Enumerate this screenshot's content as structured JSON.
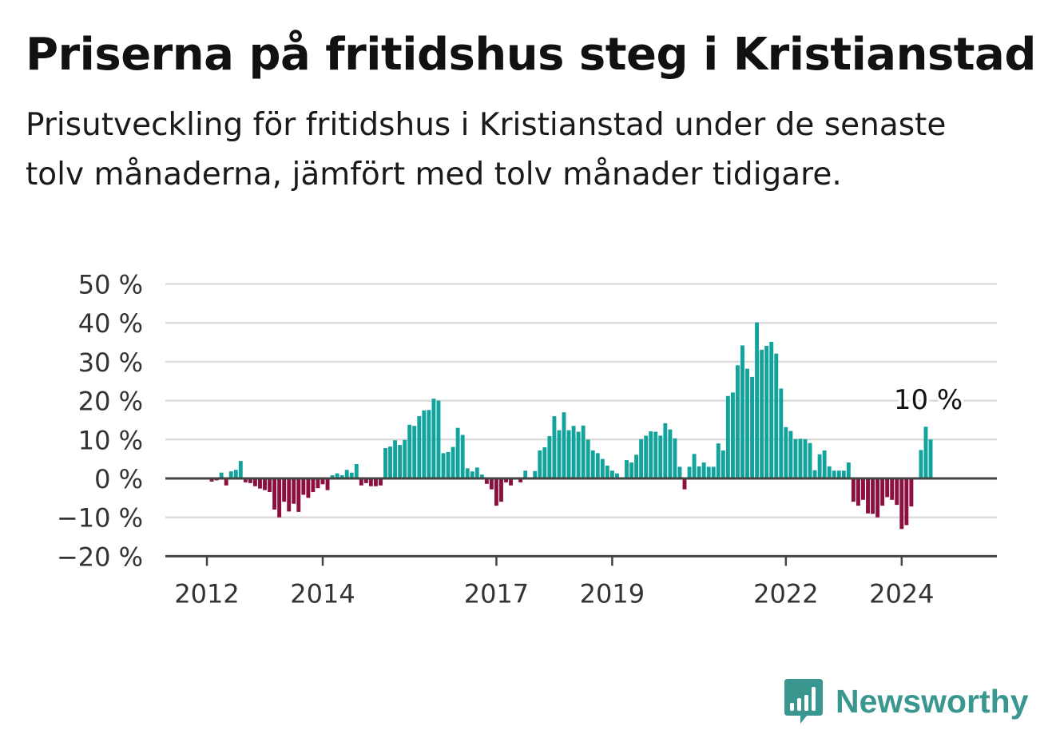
{
  "title": "Priserna på fritidshus steg i Kristianstad",
  "subtitle": "Prisutveckling för fritidshus i Kristianstad under de senaste tolv månaderna, jämfört med tolv månader tidigare.",
  "brand": {
    "name": "Newsworthy",
    "icon": "newsworthy-logo-icon"
  },
  "colors": {
    "positive": "#11a39c",
    "negative": "#8c0f40",
    "grid": "#dcdcdc",
    "axis": "#444444",
    "brand": "#3a9790"
  },
  "chart_data": {
    "type": "bar",
    "title": "",
    "xlabel": "",
    "ylabel": "",
    "ylim": [
      -20,
      50
    ],
    "y_ticks": [
      {
        "value": -20,
        "label": "−20 %"
      },
      {
        "value": -10,
        "label": "−10 %"
      },
      {
        "value": 0,
        "label": "0 %"
      },
      {
        "value": 10,
        "label": "10 %"
      },
      {
        "value": 20,
        "label": "20 %"
      },
      {
        "value": 30,
        "label": "30 %"
      },
      {
        "value": 40,
        "label": "40 %"
      },
      {
        "value": 50,
        "label": "50 %"
      }
    ],
    "x_ticks": [
      {
        "year": 2012,
        "label": "2012"
      },
      {
        "year": 2014,
        "label": "2014"
      },
      {
        "year": 2017,
        "label": "2017"
      },
      {
        "year": 2019,
        "label": "2019"
      },
      {
        "year": 2022,
        "label": "2022"
      },
      {
        "year": 2024,
        "label": "2024"
      }
    ],
    "start_year": 2011,
    "start_month": 12,
    "grid": true,
    "annotation": {
      "text": "10 %",
      "at": "last"
    },
    "values": [
      0,
      0,
      -0.8,
      -0.5,
      1.5,
      -1.8,
      1.8,
      2.2,
      4.5,
      -1,
      -1.2,
      -2,
      -2.6,
      -3,
      -3.5,
      -8,
      -10,
      -6,
      -8.5,
      -6.5,
      -8.6,
      -4.2,
      -5,
      -3.5,
      -2.5,
      -1.5,
      -3,
      0.8,
      1.3,
      0.8,
      2.2,
      1.5,
      3.7,
      -1.8,
      -1.2,
      -2,
      -2,
      -1.8,
      7.8,
      8.2,
      9.8,
      8.6,
      9.9,
      13.8,
      13.5,
      16,
      17.5,
      17.6,
      20.5,
      20,
      6.5,
      6.8,
      8.1,
      13,
      11.2,
      2.6,
      1.8,
      2.8,
      1,
      -1.4,
      -2.8,
      -7,
      -6,
      -1,
      -1.8,
      0,
      -1,
      2,
      0,
      1.9,
      7.2,
      8,
      10.9,
      16,
      12.4,
      17,
      12.4,
      13.5,
      12,
      13.6,
      10,
      7.2,
      6.5,
      5,
      3.3,
      2,
      1.3,
      0,
      4.7,
      4.1,
      6.1,
      10.1,
      11,
      12.1,
      12,
      11,
      14.2,
      12.6,
      10.3,
      3,
      -2.8,
      3,
      6.3,
      3.1,
      4.1,
      3,
      3,
      9,
      7.2,
      21.2,
      22.1,
      29.1,
      34.2,
      28.2,
      26.1,
      40.1,
      33.1,
      34.1,
      35.1,
      32.1,
      23.1,
      13.2,
      12.2,
      10.1,
      10.2,
      10.1,
      9.1,
      2.1,
      6.2,
      7.2,
      3.1,
      2,
      2,
      2,
      4.1,
      -6,
      -7,
      -5.5,
      -9,
      -9.1,
      -10,
      -7,
      -4.8,
      -5.5,
      -6.8,
      -13,
      -12,
      -7.2,
      0,
      7.3,
      13.3,
      10
    ]
  }
}
